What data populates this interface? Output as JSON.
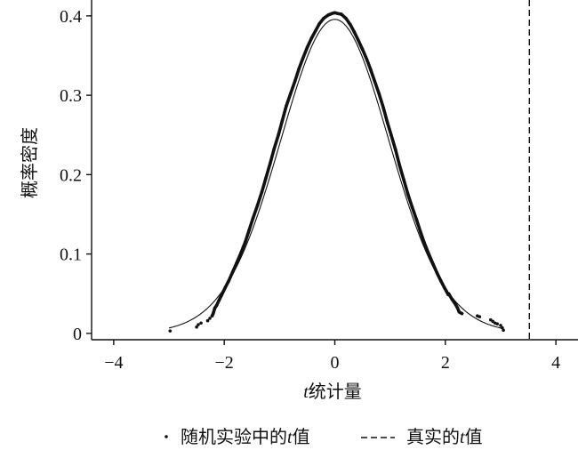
{
  "chart_data": {
    "type": "line",
    "title": "",
    "xlabel_italic": "t",
    "xlabel_rest": "统计量",
    "ylabel": "概率密度",
    "xlim": [
      -4.4,
      4.4
    ],
    "ylim": [
      -0.008,
      0.42
    ],
    "x_ticks": [
      -4,
      -2,
      0,
      2,
      4
    ],
    "x_tick_labels": [
      "−4",
      "−2",
      "0",
      "2",
      "4"
    ],
    "y_ticks": [
      0,
      0.1,
      0.2,
      0.3,
      0.4
    ],
    "y_tick_labels": [
      "0",
      "0.1",
      "0.2",
      "0.3",
      "0.4"
    ],
    "grid": false,
    "legend_position": "bottom",
    "colors": {
      "line": "#111111",
      "axis": "#111111"
    },
    "reference_line": {
      "name": "真实的t值",
      "x": 3.52,
      "style": "dashed"
    },
    "theoretical_curve": {
      "distribution": "t",
      "df": 30,
      "x_range": [
        -3.0,
        3.05
      ]
    },
    "simulated_points": {
      "name": "随机实验中的t值",
      "points": [
        [
          -2.98,
          0.003
        ],
        [
          -2.5,
          0.008
        ],
        [
          -2.47,
          0.011
        ],
        [
          -2.42,
          0.013
        ],
        [
          -2.3,
          0.016
        ],
        [
          -2.26,
          0.019
        ],
        [
          -2.22,
          0.022
        ],
        [
          -2.2,
          0.025
        ],
        [
          -2.17,
          0.032
        ],
        [
          -2.14,
          0.035
        ],
        [
          -2.1,
          0.041
        ],
        [
          -2.05,
          0.048
        ],
        [
          -1.98,
          0.058
        ],
        [
          -1.92,
          0.066
        ],
        [
          -1.85,
          0.077
        ],
        [
          -1.78,
          0.088
        ],
        [
          -1.7,
          0.101
        ],
        [
          -1.62,
          0.115
        ],
        [
          -1.55,
          0.13
        ],
        [
          -1.48,
          0.145
        ],
        [
          -1.4,
          0.161
        ],
        [
          -1.32,
          0.178
        ],
        [
          -1.25,
          0.195
        ],
        [
          -1.17,
          0.214
        ],
        [
          -1.1,
          0.232
        ],
        [
          -1.02,
          0.25
        ],
        [
          -0.95,
          0.268
        ],
        [
          -0.88,
          0.286
        ],
        [
          -0.8,
          0.302
        ],
        [
          -0.72,
          0.318
        ],
        [
          -0.65,
          0.333
        ],
        [
          -0.58,
          0.346
        ],
        [
          -0.5,
          0.36
        ],
        [
          -0.42,
          0.372
        ],
        [
          -0.35,
          0.381
        ],
        [
          -0.28,
          0.39
        ],
        [
          -0.2,
          0.397
        ],
        [
          -0.12,
          0.401
        ],
        [
          -0.05,
          0.403
        ],
        [
          0.0,
          0.404
        ],
        [
          0.05,
          0.403
        ],
        [
          0.12,
          0.402
        ],
        [
          0.2,
          0.397
        ],
        [
          0.28,
          0.389
        ],
        [
          0.35,
          0.38
        ],
        [
          0.42,
          0.37
        ],
        [
          0.5,
          0.358
        ],
        [
          0.58,
          0.345
        ],
        [
          0.65,
          0.332
        ],
        [
          0.72,
          0.318
        ],
        [
          0.8,
          0.302
        ],
        [
          0.88,
          0.284
        ],
        [
          0.95,
          0.266
        ],
        [
          1.02,
          0.25
        ],
        [
          1.1,
          0.231
        ],
        [
          1.17,
          0.212
        ],
        [
          1.25,
          0.193
        ],
        [
          1.32,
          0.176
        ],
        [
          1.4,
          0.159
        ],
        [
          1.48,
          0.143
        ],
        [
          1.55,
          0.128
        ],
        [
          1.62,
          0.114
        ],
        [
          1.7,
          0.1
        ],
        [
          1.78,
          0.087
        ],
        [
          1.85,
          0.076
        ],
        [
          1.92,
          0.066
        ],
        [
          1.98,
          0.058
        ],
        [
          2.05,
          0.049
        ],
        [
          2.12,
          0.043
        ],
        [
          2.18,
          0.037
        ],
        [
          2.22,
          0.032
        ],
        [
          2.25,
          0.027
        ],
        [
          2.3,
          0.025
        ],
        [
          2.02,
          0.053
        ],
        [
          2.06,
          0.05
        ],
        [
          2.58,
          0.022
        ],
        [
          2.62,
          0.021
        ],
        [
          2.82,
          0.017
        ],
        [
          2.86,
          0.015
        ],
        [
          2.9,
          0.013
        ],
        [
          2.94,
          0.012
        ],
        [
          3.0,
          0.01
        ],
        [
          3.03,
          0.007
        ],
        [
          3.05,
          0.004
        ]
      ]
    }
  }
}
